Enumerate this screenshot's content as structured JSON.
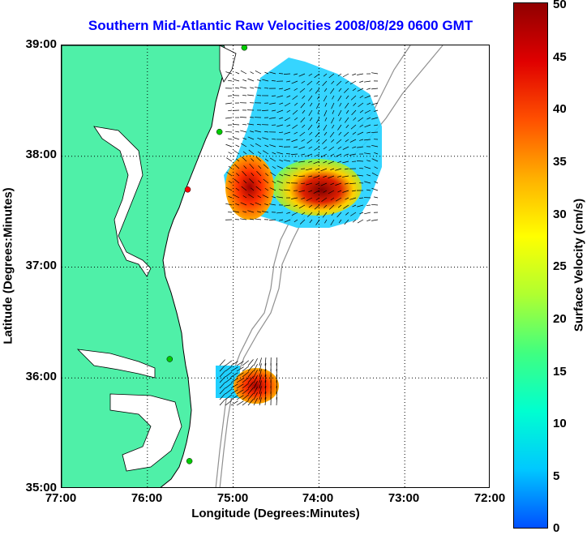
{
  "title": "Southern Mid-Atlantic Raw Velocities 2008/08/29 0600 GMT",
  "x_axis": {
    "label": "Longitude (Degrees:Minutes)",
    "ticks": [
      "77:00",
      "76:00",
      "75:00",
      "74:00",
      "73:00",
      "72:00"
    ]
  },
  "y_axis": {
    "label": "Latitude (Degrees:Minutes)",
    "ticks": [
      "39:00",
      "38:00",
      "37:00",
      "36:00",
      "35:00"
    ]
  },
  "colorbar": {
    "label": "Surface Velocity (cm/s)",
    "ticks": [
      "50",
      "45",
      "40",
      "35",
      "30",
      "25",
      "20",
      "15",
      "10",
      "5",
      "0"
    ],
    "range": [
      0,
      50
    ],
    "colors": [
      "#0050ff",
      "#00c8ff",
      "#00ffd0",
      "#40ff80",
      "#b0ff30",
      "#ffff00",
      "#ffb000",
      "#ff5000",
      "#e00000",
      "#900000"
    ]
  },
  "colors": {
    "land": "#4ff0a8",
    "coast": "#000000",
    "bathymetry": "#909090",
    "grid": "#000000",
    "station": "#00cc00",
    "station_alt": "#ff0000",
    "title": "#0000ff"
  },
  "map": {
    "lon_range": [
      -77,
      -72
    ],
    "lat_range": [
      35,
      39
    ],
    "stations": [
      {
        "lat": 38.98,
        "lon": -74.87,
        "status": "active"
      },
      {
        "lat": 38.22,
        "lon": -75.16,
        "status": "active"
      },
      {
        "lat": 37.7,
        "lon": -75.53,
        "status": "inactive"
      },
      {
        "lat": 36.17,
        "lon": -75.74,
        "status": "active"
      },
      {
        "lat": 35.25,
        "lon": -75.51,
        "status": "active"
      }
    ]
  }
}
